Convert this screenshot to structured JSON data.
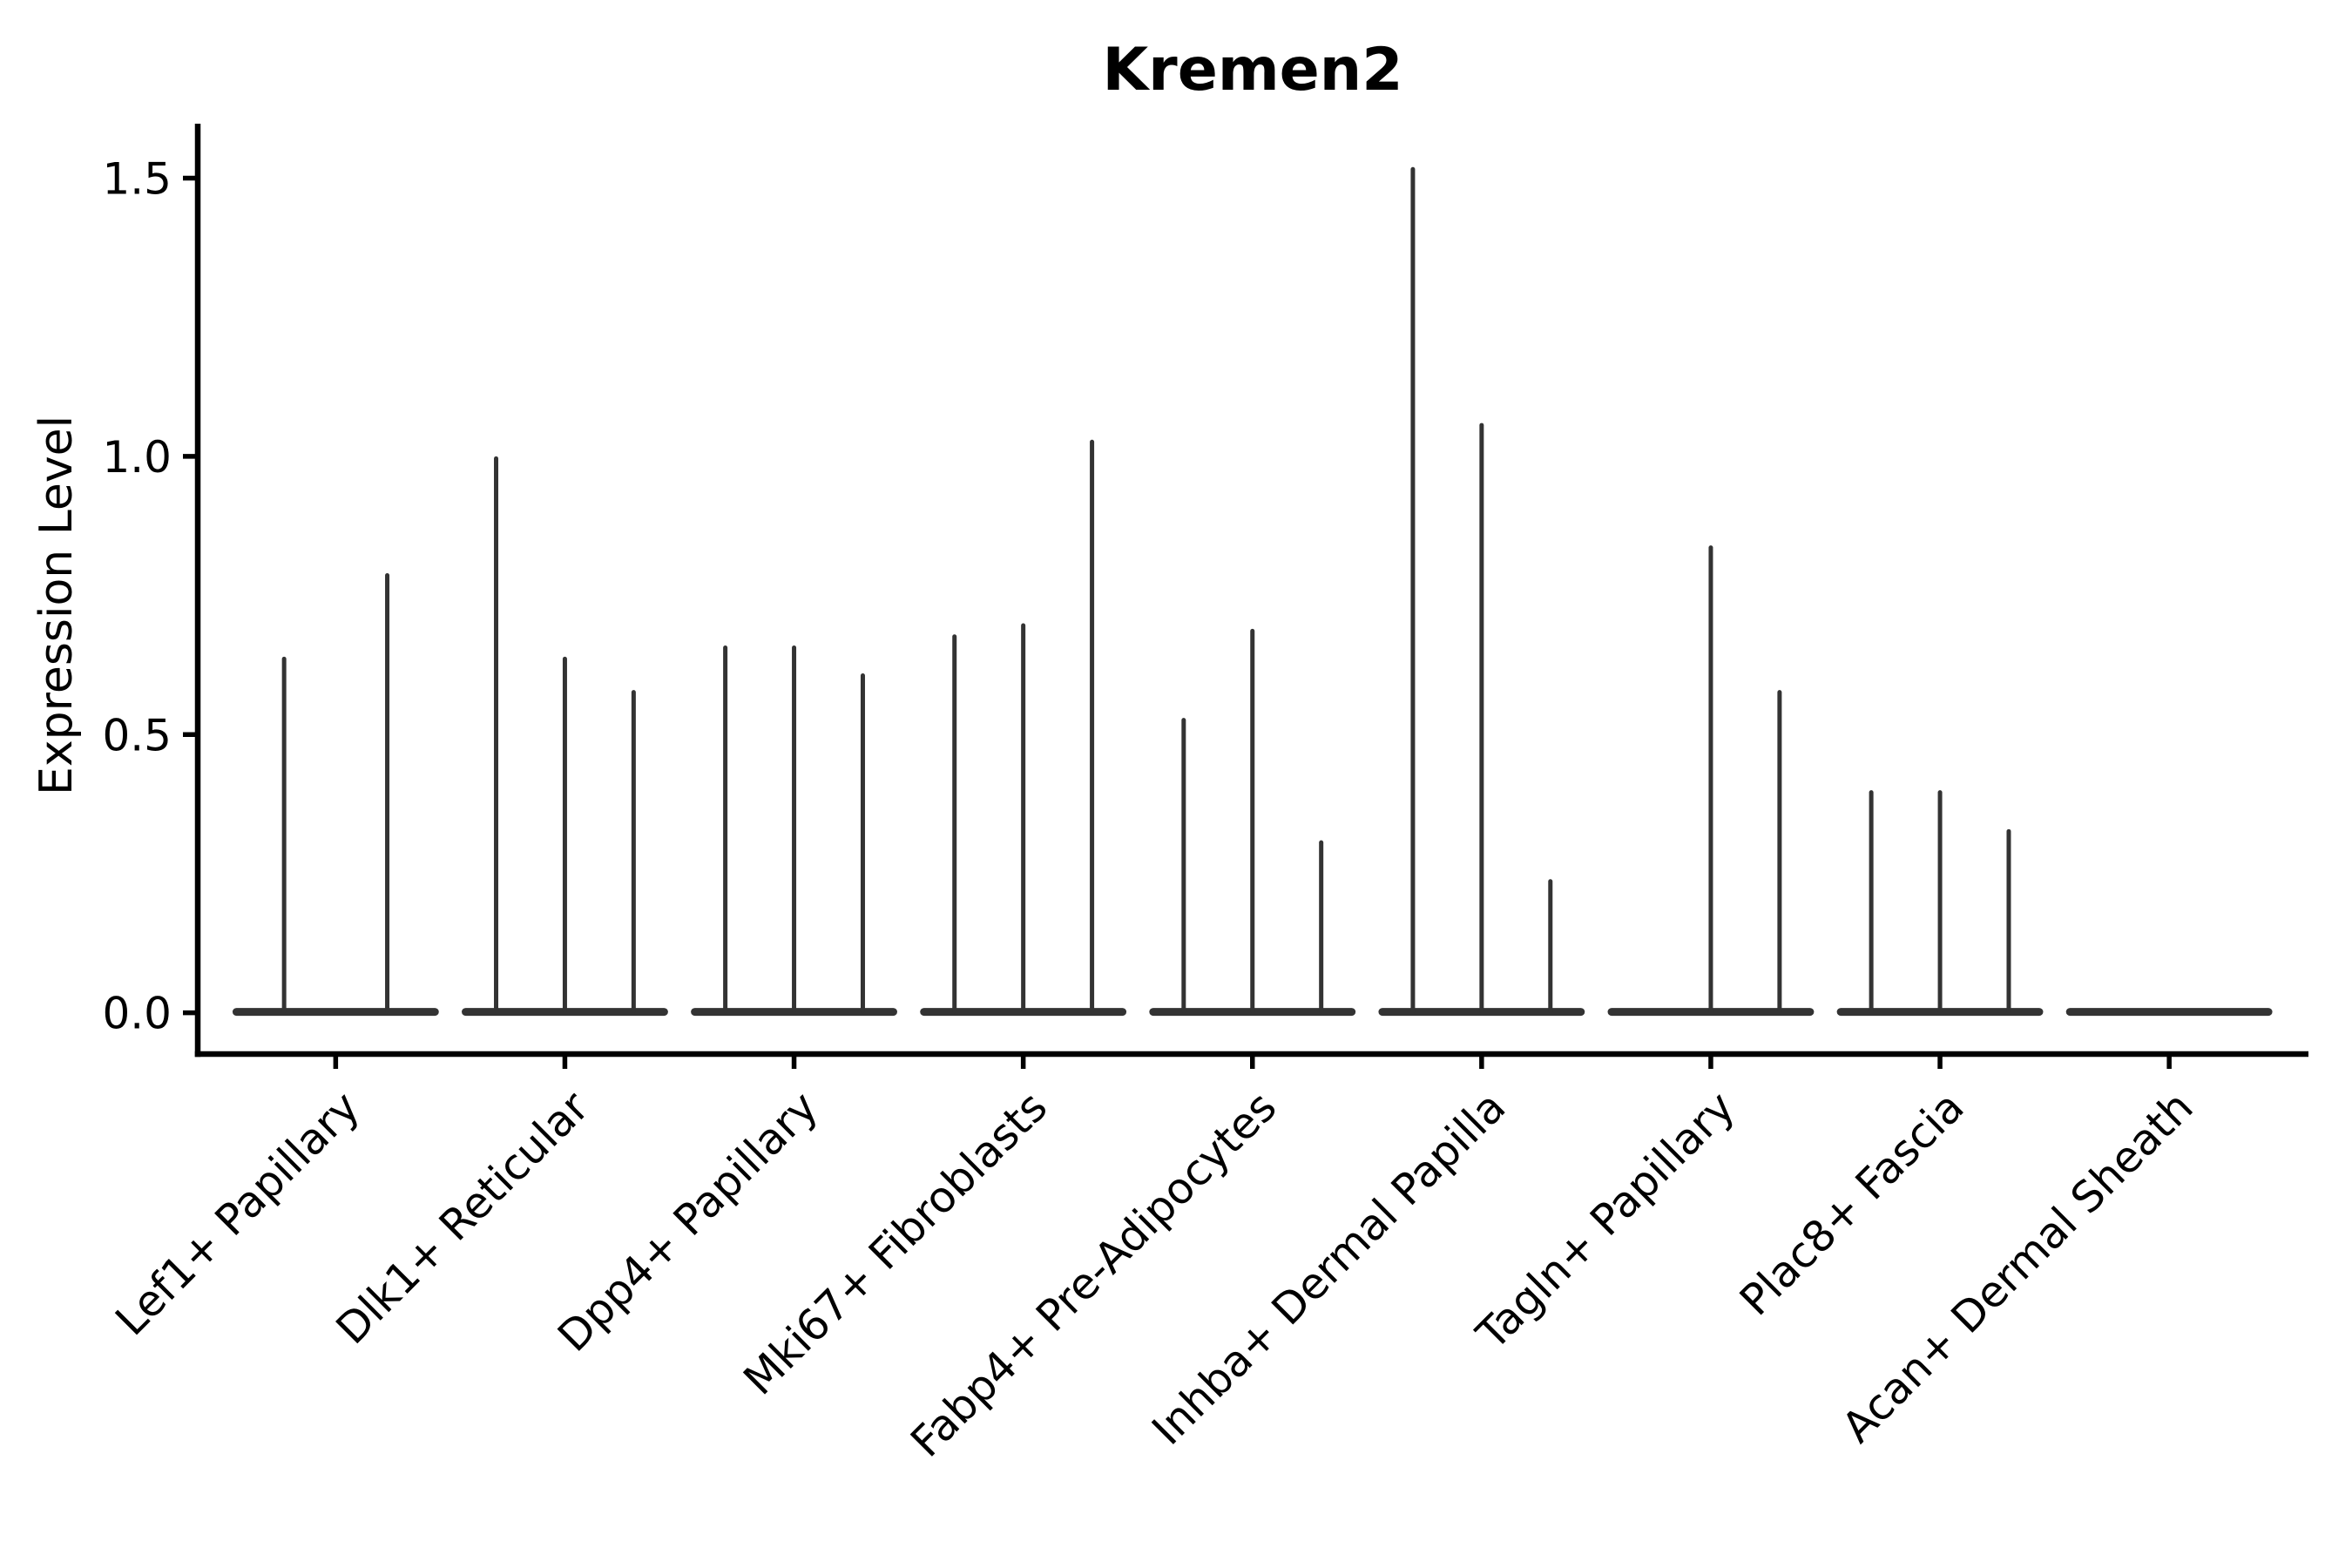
{
  "chart_data": {
    "type": "violin",
    "title": "Kremen2",
    "ylabel": "Expression Level",
    "xlabel": "",
    "grid": false,
    "legend": false,
    "ylim": [
      -0.074,
      1.6
    ],
    "yticks": [
      0.0,
      0.5,
      1.0,
      1.5
    ],
    "ytick_labels": [
      "0.0",
      "0.5",
      "1.0",
      "1.5"
    ],
    "categories": [
      "Lef1+ Papillary",
      "Dlk1+ Reticular",
      "Dpp4+ Papillary",
      "Mki67+ Fibroblasts",
      "Fabp4+ Pre-Adipocytes",
      "Inhba+ Dermal Papilla",
      "Tagln+ Papillary",
      "Plac8+ Fascia",
      "Acan+ Dermal Sheath"
    ],
    "series": [
      {
        "category": "Lef1+ Papillary",
        "violin_max_expression": [
          0.64,
          0.79
        ]
      },
      {
        "category": "Dlk1+ Reticular",
        "violin_max_expression": [
          1.0,
          0.64,
          0.58
        ]
      },
      {
        "category": "Dpp4+ Papillary",
        "violin_max_expression": [
          0.66,
          0.66,
          0.61
        ]
      },
      {
        "category": "Mki67+ Fibroblasts",
        "violin_max_expression": [
          0.68,
          0.7,
          1.03
        ]
      },
      {
        "category": "Fabp4+ Pre-Adipocytes",
        "violin_max_expression": [
          0.53,
          0.69,
          0.31
        ]
      },
      {
        "category": "Inhba+ Dermal Papilla",
        "violin_max_expression": [
          1.52,
          1.06,
          0.24
        ]
      },
      {
        "category": "Tagln+ Papillary",
        "violin_max_expression": [
          0.0,
          0.84,
          0.58
        ]
      },
      {
        "category": "Plac8+ Fascia",
        "violin_max_expression": [
          0.4,
          0.4,
          0.33
        ]
      },
      {
        "category": "Acan+ Dermal Sheath",
        "violin_max_expression": [
          0.0,
          0.0,
          0.0
        ]
      }
    ],
    "colors": {
      "violin": "#333333",
      "axis": "#000000",
      "text": "#000000",
      "background": "#ffffff"
    }
  }
}
